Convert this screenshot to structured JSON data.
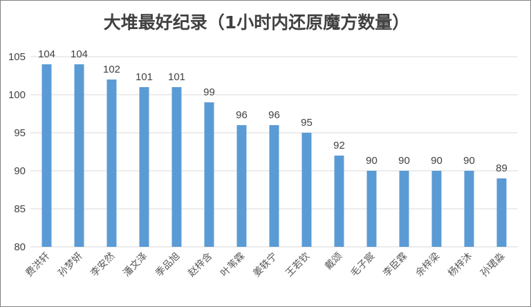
{
  "chart_data": {
    "type": "bar",
    "title": "大堆最好纪录（1小时内还原魔方数量）",
    "categories": [
      "费洪轩",
      "孙梦妍",
      "李安然",
      "潘文泽",
      "季品旭",
      "赵梓含",
      "叶苇霖",
      "姜轶宁",
      "王若钦",
      "戴颂",
      "毛子宸",
      "李臣霖",
      "余梓梁",
      "杨梓沐",
      "孙珺淼"
    ],
    "values": [
      104,
      104,
      102,
      101,
      101,
      99,
      96,
      96,
      95,
      92,
      90,
      90,
      90,
      90,
      89
    ],
    "ylim": [
      80,
      105
    ],
    "yticks": [
      80,
      85,
      90,
      95,
      100,
      105
    ],
    "grid": true,
    "legend": "none",
    "bar_color": "#5b9bd5"
  }
}
